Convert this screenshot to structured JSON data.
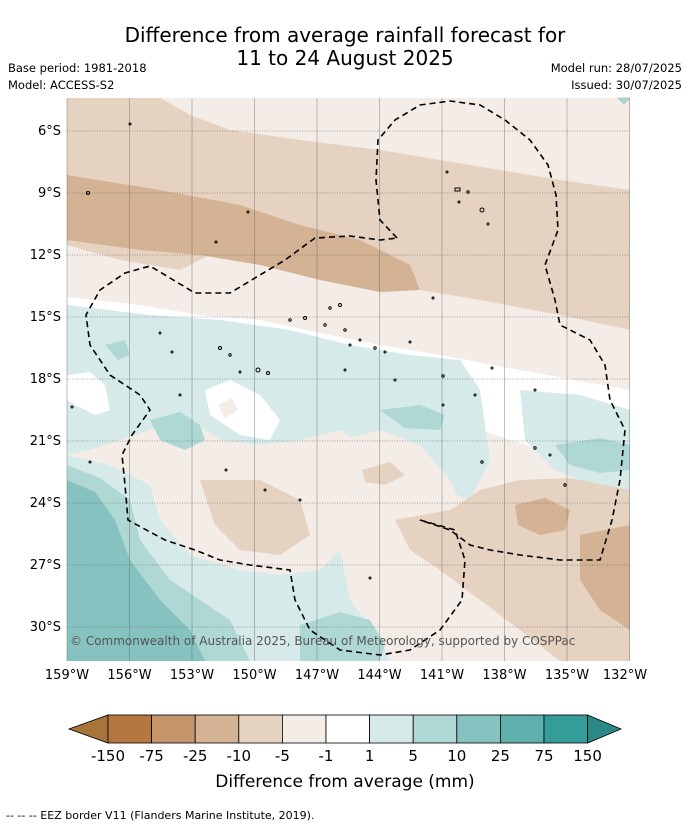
{
  "title_line1": "Difference from average rainfall forecast for",
  "title_line2": "11 to 24 August 2025",
  "base_period": "Base period: 1981-2018",
  "model": "Model: ACCESS-S2",
  "model_run": "Model run: 28/07/2025",
  "issued": "Issued: 30/07/2025",
  "y_ticks": [
    "6°S",
    "9°S",
    "12°S",
    "15°S",
    "18°S",
    "21°S",
    "24°S",
    "27°S",
    "30°S"
  ],
  "x_ticks": [
    "159°W",
    "156°W",
    "153°W",
    "150°W",
    "147°W",
    "144°W",
    "141°W",
    "138°W",
    "135°W",
    "132°W"
  ],
  "copyright": "© Commonwealth of Australia 2025, Bureau of Meteorology, supported by COSPPac",
  "colorbar": {
    "ticks": [
      "-150",
      "-75",
      "-25",
      "-10",
      "-5",
      "-1",
      "1",
      "5",
      "10",
      "25",
      "75",
      "150"
    ],
    "colors": [
      "#a8743a",
      "#b3773f",
      "#c4946a",
      "#d4b294",
      "#e6d2c1",
      "#f4ece6",
      "#ffffff",
      "#d6ebe9",
      "#afd8d5",
      "#86c3c0",
      "#5eb0ac",
      "#349d99",
      "#2b8884"
    ],
    "label": "Difference from average (mm)"
  },
  "footnote": "--  --  -- EEZ border V11 (Flanders Marine Institute, 2019)."
}
